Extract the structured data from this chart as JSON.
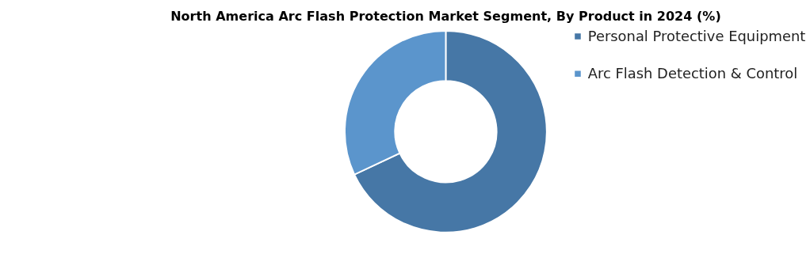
{
  "chart_data": {
    "type": "donut",
    "title": "North America Arc Flash Protection Market Segment, By Product in 2024 (%)",
    "categories": [
      "Personal Protective Equipment",
      "Arc Flash Detection & Control"
    ],
    "values": [
      68,
      32
    ],
    "colors": [
      "#4677a6",
      "#5b95cc"
    ],
    "legend": "right"
  }
}
